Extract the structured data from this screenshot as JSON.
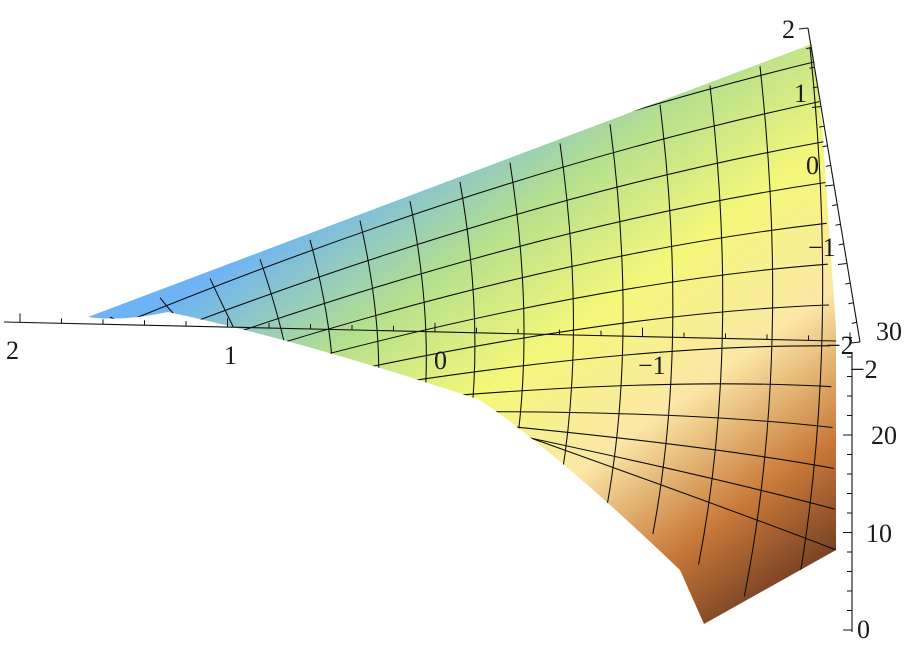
{
  "chart_data": {
    "type": "surface3d",
    "title": "",
    "xlabel": "",
    "ylabel": "",
    "zlabel": "",
    "x_axis": {
      "ticks": [
        2,
        1,
        0,
        -1,
        -2
      ],
      "range": [
        -2,
        2.5
      ]
    },
    "y_axis": {
      "ticks": [
        -2,
        -1,
        0,
        1,
        2
      ],
      "range": [
        -2,
        2
      ]
    },
    "z_axis": {
      "ticks": [
        0,
        10,
        20,
        30
      ],
      "range": [
        0,
        30
      ]
    },
    "colormap": [
      "#6eb4f5",
      "#b6e08c",
      "#f5f77a",
      "#fbe7a6",
      "#c97a3a",
      "#6a3820"
    ],
    "mesh": {
      "x_lines": 15,
      "y_lines": 13
    }
  },
  "labels": {
    "x": [
      "2",
      "1",
      "0",
      "−1",
      "−2"
    ],
    "y": [
      "2",
      "1",
      "0",
      "−1",
      "−2"
    ],
    "z": [
      "0",
      "10",
      "20",
      "30"
    ]
  }
}
